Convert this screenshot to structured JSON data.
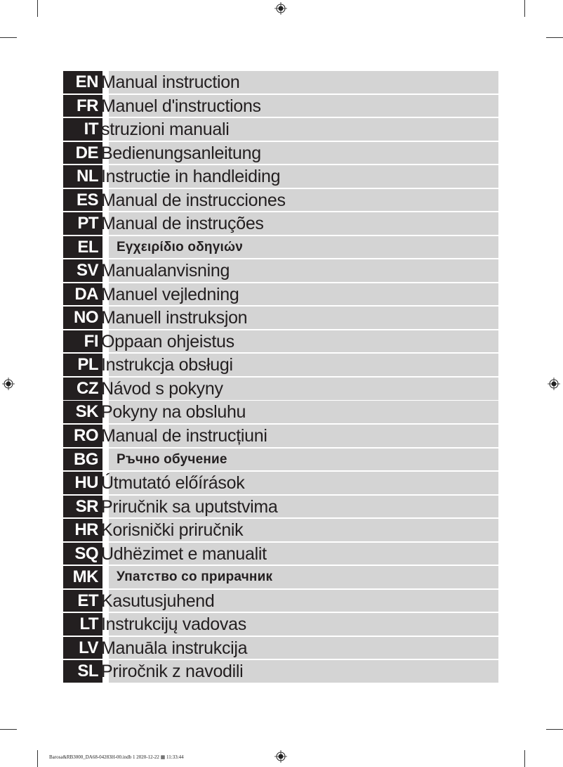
{
  "languages": [
    {
      "code": "EN",
      "title": "Manual instruction"
    },
    {
      "code": "FR",
      "title": "Manuel d'instructions"
    },
    {
      "code": "IT",
      "title": "struzioni manuali"
    },
    {
      "code": "DE",
      "title": "Bedienungsanleitung"
    },
    {
      "code": "NL",
      "title": "Instructie in handleiding"
    },
    {
      "code": "ES",
      "title": "Manual de instrucciones"
    },
    {
      "code": "PT",
      "title": "Manual de instruções"
    },
    {
      "code": "EL",
      "title": "Εγχειρίδιο οδηγιών",
      "alt": true
    },
    {
      "code": "SV",
      "title": "Manualanvisning"
    },
    {
      "code": "DA",
      "title": "Manuel vejledning"
    },
    {
      "code": "NO",
      "title": "Manuell instruksjon"
    },
    {
      "code": "FI",
      "title": "Oppaan ohjeistus"
    },
    {
      "code": "PL",
      "title": "Instrukcja obsługi"
    },
    {
      "code": "CZ",
      "title": "Návod s pokyny"
    },
    {
      "code": "SK",
      "title": "Pokyny na obsluhu"
    },
    {
      "code": "RO",
      "title": "Manual de instrucțiuni"
    },
    {
      "code": "BG",
      "title": "Ръчно обучение",
      "alt": true
    },
    {
      "code": "HU",
      "title": "Útmutató előírások"
    },
    {
      "code": "SR",
      "title": "Priručnik sa uputstvima"
    },
    {
      "code": "HR",
      "title": "Korisnički priručnik"
    },
    {
      "code": "SQ",
      "title": "Udhëzimet e manualit"
    },
    {
      "code": "MK",
      "title": "Упатство со прирачник",
      "alt": true
    },
    {
      "code": "ET",
      "title": "Kasutusjuhend"
    },
    {
      "code": "LT",
      "title": "Instrukcijų vadovas"
    },
    {
      "code": "LV",
      "title": "Manuāla instrukcija"
    },
    {
      "code": "SL",
      "title": "Priročnik z navodili"
    }
  ],
  "footer": {
    "slug": "Barosa&RB3000_DA68-04283H-00.indb   1   2020-12-22   ▦ 11:33:44"
  },
  "colors": {
    "code_bg": "#231f20",
    "bar_bg": "#d4d4d4"
  }
}
